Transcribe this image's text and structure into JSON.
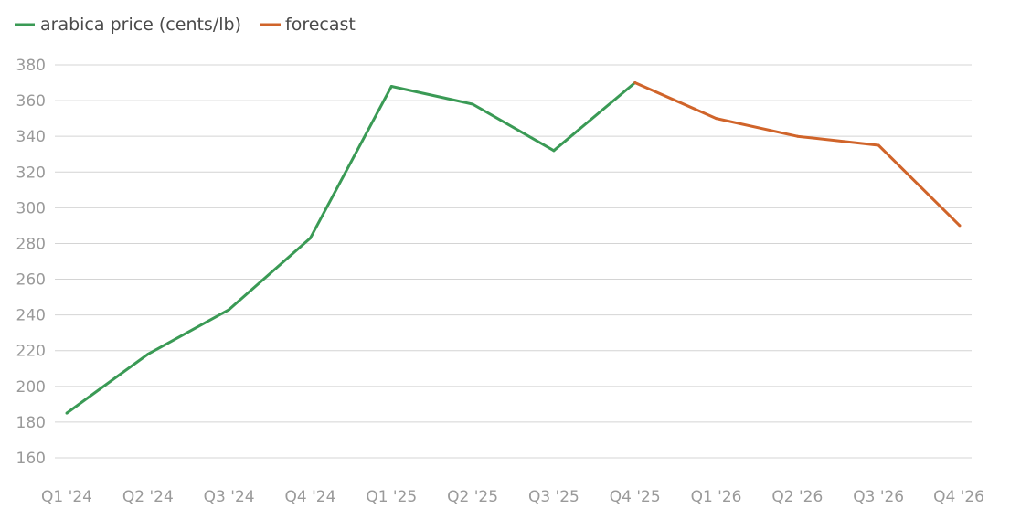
{
  "chart_data": {
    "type": "line",
    "title": "",
    "xlabel": "",
    "ylabel": "",
    "categories": [
      "Q1 '24",
      "Q2 '24",
      "Q3 '24",
      "Q4 '24",
      "Q1 '25",
      "Q2 '25",
      "Q3 '25",
      "Q4 '25",
      "Q1 '26",
      "Q2 '26",
      "Q3 '26",
      "Q4 '26"
    ],
    "ylim": [
      160,
      380
    ],
    "yticks": [
      160,
      180,
      200,
      220,
      240,
      260,
      280,
      300,
      320,
      340,
      360,
      380
    ],
    "grid": true,
    "legend_position": "top-left",
    "series": [
      {
        "name": "arabica price (cents/lb)",
        "color": "#3a9a55",
        "values": [
          185,
          218,
          243,
          283,
          368,
          358,
          332,
          370,
          null,
          null,
          null,
          null
        ]
      },
      {
        "name": "forecast",
        "color": "#d0642a",
        "values": [
          null,
          null,
          null,
          null,
          null,
          null,
          null,
          370,
          350,
          340,
          335,
          290
        ]
      }
    ]
  }
}
